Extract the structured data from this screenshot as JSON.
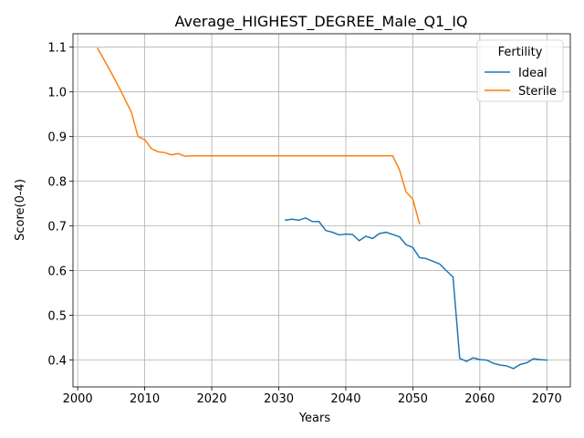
{
  "chart_data": {
    "type": "line",
    "title": "Average_HIGHEST_DEGREE_Male_Q1_IQ",
    "xlabel": "Years",
    "ylabel": "Score(0-4)",
    "xlim": [
      1999.3,
      2073.5
    ],
    "ylim": [
      0.34,
      1.13
    ],
    "xticks": [
      2000,
      2010,
      2020,
      2030,
      2040,
      2050,
      2060,
      2070
    ],
    "yticks": [
      0.4,
      0.5,
      0.6,
      0.7,
      0.8,
      0.9,
      1.0,
      1.1
    ],
    "ytick_labels": [
      "0.4",
      "0.5",
      "0.6",
      "0.7",
      "0.8",
      "0.9",
      "1.0",
      "1.1"
    ],
    "grid": true,
    "legend": {
      "title": "Fertility",
      "position": "top-right"
    },
    "series": [
      {
        "name": "Ideal",
        "color": "#1f77b4",
        "x": [
          2031,
          2032,
          2033,
          2034,
          2035,
          2036,
          2037,
          2038,
          2039,
          2040,
          2041,
          2042,
          2043,
          2044,
          2045,
          2046,
          2047,
          2048,
          2049,
          2050,
          2051,
          2052,
          2053,
          2054,
          2055,
          2056,
          2057,
          2058,
          2059,
          2060,
          2061,
          2062,
          2063,
          2064,
          2065,
          2066,
          2067,
          2068,
          2069,
          2070
        ],
        "y": [
          0.713,
          0.715,
          0.713,
          0.718,
          0.71,
          0.71,
          0.69,
          0.686,
          0.68,
          0.682,
          0.681,
          0.667,
          0.677,
          0.672,
          0.683,
          0.686,
          0.681,
          0.676,
          0.658,
          0.652,
          0.629,
          0.627,
          0.621,
          0.615,
          0.6,
          0.586,
          0.404,
          0.397,
          0.405,
          0.401,
          0.4,
          0.393,
          0.389,
          0.387,
          0.381,
          0.39,
          0.394,
          0.403,
          0.401,
          0.4
        ]
      },
      {
        "name": "Sterile",
        "color": "#ff7f0e",
        "x": [
          2003,
          2004,
          2005,
          2006,
          2007,
          2008,
          2009,
          2010,
          2011,
          2012,
          2013,
          2014,
          2015,
          2016,
          2017,
          2018,
          2019,
          2020,
          2025,
          2030,
          2035,
          2040,
          2045,
          2046,
          2047,
          2048,
          2049,
          2050,
          2051
        ],
        "y": [
          1.097,
          1.07,
          1.043,
          1.015,
          0.985,
          0.955,
          0.9,
          0.893,
          0.873,
          0.866,
          0.864,
          0.859,
          0.862,
          0.856,
          0.857,
          0.857,
          0.857,
          0.857,
          0.857,
          0.857,
          0.857,
          0.857,
          0.857,
          0.857,
          0.857,
          0.826,
          0.776,
          0.76,
          0.705
        ]
      }
    ]
  }
}
